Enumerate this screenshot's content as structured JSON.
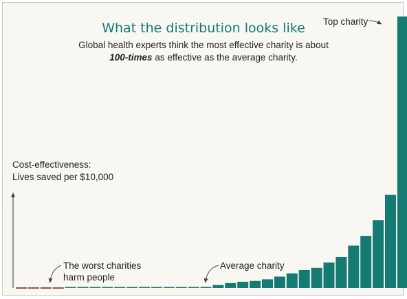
{
  "title": "What the distribution looks like",
  "subtitle": {
    "line1": "Global health experts think the most effective charity is about",
    "emphasis": "100-times",
    "line2_rest": " as effective as the average charity."
  },
  "colors": {
    "positive": "#157a72",
    "negative": "#8a5a3c",
    "title": "#147a74"
  },
  "chart_data": {
    "type": "bar",
    "title": "What the distribution looks like",
    "ylabel": "Cost-effectiveness: Lives saved per $10,000",
    "ylabel_lines": [
      "Cost-effectiveness:",
      "Lives saved per $10,000"
    ],
    "xlabel": "",
    "values": [
      -0.1,
      -0.1,
      -0.1,
      -0.1,
      0.1,
      0.1,
      0.1,
      0.2,
      0.2,
      0.2,
      0.2,
      0.3,
      0.3,
      0.3,
      0.3,
      0.4,
      1.1,
      1.8,
      2.3,
      2.6,
      3.2,
      4.2,
      5.4,
      6.6,
      7.4,
      9.4,
      11.4,
      15.6,
      19.2,
      25.0,
      34.3,
      100
    ],
    "annotations": [
      {
        "text": "Top charity"
      },
      {
        "text": "Average charity"
      },
      {
        "lines": [
          "The worst charities",
          "harm people"
        ]
      }
    ]
  }
}
